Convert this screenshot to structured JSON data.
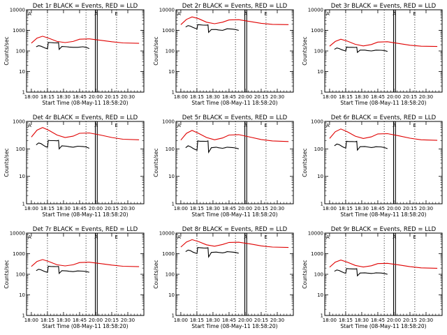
{
  "colors": {
    "events": "#000000",
    "lld": "#e00000",
    "axes": "#000000",
    "background": "#ffffff"
  },
  "x_tick_labels": [
    "18:00",
    "18:15",
    "18:30",
    "18:45",
    "20:00",
    "20:15",
    "20:30"
  ],
  "y_label": "Counts/sec",
  "x_label": "Start Time (08-May-11 18:58:20)",
  "markers": {
    "attenuator": "A",
    "eclipse": "E"
  },
  "chart_data": [
    {
      "type": "line",
      "title": "Det 1r BLACK = Events, RED = LLD",
      "xlabel": "Start Time (08-May-11 18:58:20)",
      "ylabel": "Counts/sec",
      "ylim": [
        1,
        10000
      ],
      "y_scale": "log",
      "y_tick_labels": [
        "10000",
        "1000",
        "100",
        "10",
        "1"
      ],
      "series": [
        {
          "name": "BLACK = Events",
          "color": "#000000",
          "x": [
            0.3,
            0.45,
            0.6,
            0.75,
            0.9,
            1.01,
            1.05,
            1.2,
            1.4,
            1.6,
            1.69,
            1.73,
            1.9,
            2.2,
            2.35,
            2.6,
            2.75,
            2.88,
            3.2,
            3.4,
            3.6
          ],
          "y": [
            160,
            180,
            170,
            150,
            135,
            130,
            260,
            255,
            250,
            248,
            255,
            120,
            165,
            160,
            155,
            150,
            150,
            150,
            160,
            150,
            130
          ]
        },
        {
          "name": "RED = LLD",
          "color": "#e00000",
          "x": [
            0,
            0.35,
            0.7,
            1.1,
            1.6,
            2.1,
            2.6,
            3.0,
            3.6,
            4.3,
            5.0,
            5.7,
            6.7
          ],
          "y": [
            240,
            420,
            520,
            410,
            290,
            255,
            290,
            370,
            385,
            330,
            280,
            245,
            235
          ]
        }
      ]
    },
    {
      "type": "line",
      "title": "Det 2r BLACK = Events, RED = LLD",
      "xlabel": "Start Time (08-May-11 18:58:20)",
      "ylabel": "Counts/sec",
      "ylim": [
        1,
        10000
      ],
      "y_scale": "log",
      "y_tick_labels": [
        "10000",
        "1000",
        "100",
        "10",
        "1"
      ],
      "series": [
        {
          "name": "BLACK = Events",
          "color": "#000000",
          "x": [
            0.3,
            0.45,
            0.6,
            0.75,
            0.9,
            1.01,
            1.05,
            1.2,
            1.4,
            1.6,
            1.69,
            1.73,
            1.9,
            2.2,
            2.35,
            2.6,
            2.75,
            2.88,
            3.2,
            3.4,
            3.6
          ],
          "y": [
            1450,
            1700,
            1600,
            1400,
            1250,
            1180,
            1900,
            1850,
            1800,
            1780,
            1850,
            800,
            1100,
            1100,
            1050,
            1000,
            1100,
            1200,
            1150,
            1100,
            1000
          ]
        },
        {
          "name": "RED = LLD",
          "color": "#e00000",
          "x": [
            0,
            0.35,
            0.7,
            1.1,
            1.6,
            2.1,
            2.6,
            3.0,
            3.6,
            4.3,
            5.0,
            5.7,
            6.7
          ],
          "y": [
            1900,
            3400,
            4500,
            3700,
            2500,
            2100,
            2500,
            3200,
            3300,
            2700,
            2200,
            1950,
            1900
          ]
        }
      ]
    },
    {
      "type": "line",
      "title": "Det 3r BLACK = Events, RED = LLD",
      "xlabel": "Start Time (08-May-11 18:58:20)",
      "ylabel": "Counts/sec",
      "ylim": [
        1,
        10000
      ],
      "y_scale": "log",
      "y_tick_labels": [
        "10000",
        "1000",
        "100",
        "10",
        "1"
      ],
      "series": [
        {
          "name": "BLACK = Events",
          "color": "#000000",
          "x": [
            0.3,
            0.45,
            0.6,
            0.75,
            0.9,
            1.01,
            1.05,
            1.2,
            1.4,
            1.6,
            1.69,
            1.73,
            1.9,
            2.2,
            2.35,
            2.6,
            2.75,
            2.88,
            3.2,
            3.4,
            3.6
          ],
          "y": [
            120,
            140,
            130,
            115,
            105,
            100,
            155,
            150,
            150,
            148,
            152,
            85,
            110,
            110,
            105,
            100,
            105,
            110,
            108,
            105,
            95
          ]
        },
        {
          "name": "RED = LLD",
          "color": "#e00000",
          "x": [
            0,
            0.35,
            0.7,
            1.1,
            1.6,
            2.1,
            2.6,
            3.0,
            3.6,
            4.3,
            5.0,
            5.7,
            6.7
          ],
          "y": [
            170,
            290,
            370,
            300,
            210,
            175,
            205,
            270,
            280,
            230,
            190,
            170,
            165
          ]
        }
      ]
    },
    {
      "type": "line",
      "title": "Det 4r BLACK = Events, RED = LLD",
      "xlabel": "Start Time (08-May-11 18:58:20)",
      "ylabel": "Counts/sec",
      "ylim": [
        1,
        1000
      ],
      "y_scale": "log",
      "y_tick_labels": [
        "1000",
        "100",
        "10",
        "1"
      ],
      "series": [
        {
          "name": "BLACK = Events",
          "color": "#000000",
          "x": [
            0.3,
            0.45,
            0.6,
            0.75,
            0.9,
            1.01,
            1.05,
            1.2,
            1.4,
            1.6,
            1.69,
            1.73,
            1.9,
            2.2,
            2.35,
            2.6,
            2.75,
            2.88,
            3.2,
            3.4,
            3.6
          ],
          "y": [
            140,
            165,
            155,
            135,
            120,
            115,
            205,
            200,
            200,
            198,
            205,
            100,
            130,
            125,
            120,
            115,
            120,
            125,
            122,
            118,
            105
          ]
        },
        {
          "name": "RED = LLD",
          "color": "#e00000",
          "x": [
            0,
            0.35,
            0.7,
            1.1,
            1.6,
            2.1,
            2.6,
            3.0,
            3.6,
            4.3,
            5.0,
            5.7,
            6.7
          ],
          "y": [
            270,
            480,
            600,
            470,
            320,
            260,
            290,
            370,
            380,
            320,
            260,
            225,
            215
          ]
        }
      ]
    },
    {
      "type": "line",
      "title": "Det 5r BLACK = Events, RED = LLD",
      "xlabel": "Start Time (08-May-11 18:58:20)",
      "ylabel": "Counts/sec",
      "ylim": [
        1,
        1000
      ],
      "y_scale": "log",
      "y_tick_labels": [
        "1000",
        "100",
        "10",
        "1"
      ],
      "series": [
        {
          "name": "BLACK = Events",
          "color": "#000000",
          "x": [
            0.3,
            0.45,
            0.6,
            0.75,
            0.9,
            1.01,
            1.05,
            1.2,
            1.4,
            1.6,
            1.69,
            1.73,
            1.9,
            2.2,
            2.35,
            2.6,
            2.75,
            2.88,
            3.2,
            3.4,
            3.6
          ],
          "y": [
            110,
            130,
            120,
            105,
            95,
            90,
            195,
            190,
            190,
            188,
            195,
            75,
            110,
            115,
            110,
            105,
            110,
            115,
            112,
            108,
            100
          ]
        },
        {
          "name": "RED = LLD",
          "color": "#e00000",
          "x": [
            0,
            0.35,
            0.7,
            1.1,
            1.6,
            2.1,
            2.6,
            3.0,
            3.6,
            4.3,
            5.0,
            5.7,
            6.7
          ],
          "y": [
            210,
            370,
            470,
            370,
            260,
            215,
            250,
            320,
            330,
            270,
            220,
            195,
            185
          ]
        }
      ]
    },
    {
      "type": "line",
      "title": "Det 6r BLACK = Events, RED = LLD",
      "xlabel": "Start Time (08-May-11 18:58:20)",
      "ylabel": "Counts/sec",
      "ylim": [
        1,
        1000
      ],
      "y_scale": "log",
      "y_tick_labels": [
        "1000",
        "100",
        "10",
        "1"
      ],
      "series": [
        {
          "name": "BLACK = Events",
          "color": "#000000",
          "x": [
            0.3,
            0.45,
            0.6,
            0.75,
            0.9,
            1.01,
            1.05,
            1.2,
            1.4,
            1.6,
            1.69,
            1.73,
            1.9,
            2.2,
            2.35,
            2.6,
            2.75,
            2.88,
            3.2,
            3.4,
            3.6
          ],
          "y": [
            130,
            150,
            142,
            125,
            112,
            108,
            190,
            185,
            185,
            183,
            190,
            90,
            120,
            122,
            118,
            112,
            115,
            120,
            118,
            112,
            102
          ]
        },
        {
          "name": "RED = LLD",
          "color": "#e00000",
          "x": [
            0,
            0.35,
            0.7,
            1.1,
            1.6,
            2.1,
            2.6,
            3.0,
            3.6,
            4.3,
            5.0,
            5.7,
            6.7
          ],
          "y": [
            240,
            420,
            530,
            420,
            290,
            240,
            275,
            350,
            360,
            300,
            245,
            215,
            205
          ]
        }
      ]
    },
    {
      "type": "line",
      "title": "Det 7r BLACK = Events, RED = LLD",
      "xlabel": "Start Time (08-May-11 18:58:20)",
      "ylabel": "Counts/sec",
      "ylim": [
        1,
        10000
      ],
      "y_scale": "log",
      "y_tick_labels": [
        "10000",
        "1000",
        "100",
        "10",
        "1"
      ],
      "series": [
        {
          "name": "BLACK = Events",
          "color": "#000000",
          "x": [
            0.3,
            0.45,
            0.6,
            0.75,
            0.9,
            1.01,
            1.05,
            1.2,
            1.4,
            1.6,
            1.69,
            1.73,
            1.9,
            2.2,
            2.35,
            2.6,
            2.75,
            2.88,
            3.2,
            3.4,
            3.6
          ],
          "y": [
            150,
            175,
            165,
            145,
            130,
            125,
            245,
            240,
            238,
            236,
            242,
            110,
            150,
            145,
            140,
            135,
            140,
            145,
            142,
            136,
            125
          ]
        },
        {
          "name": "RED = LLD",
          "color": "#e00000",
          "x": [
            0,
            0.35,
            0.7,
            1.1,
            1.6,
            2.1,
            2.6,
            3.0,
            3.6,
            4.3,
            5.0,
            5.7,
            6.7
          ],
          "y": [
            240,
            420,
            520,
            410,
            290,
            255,
            290,
            370,
            385,
            330,
            280,
            245,
            235
          ]
        }
      ]
    },
    {
      "type": "line",
      "title": "Det 8r BLACK = Events, RED = LLD",
      "xlabel": "Start Time (08-May-11 18:58:20)",
      "ylabel": "Counts/sec",
      "ylim": [
        1,
        10000
      ],
      "y_scale": "log",
      "y_tick_labels": [
        "10000",
        "1000",
        "100",
        "10",
        "1"
      ],
      "series": [
        {
          "name": "BLACK = Events",
          "color": "#000000",
          "x": [
            0.3,
            0.45,
            0.6,
            0.75,
            0.9,
            1.01,
            1.05,
            1.2,
            1.4,
            1.6,
            1.69,
            1.73,
            1.9,
            2.2,
            2.35,
            2.6,
            2.75,
            2.88,
            3.2,
            3.4,
            3.6
          ],
          "y": [
            1250,
            1500,
            1400,
            1200,
            1080,
            1020,
            2000,
            1950,
            1900,
            1880,
            1950,
            700,
            1150,
            1200,
            1150,
            1100,
            1150,
            1250,
            1200,
            1150,
            1050
          ]
        },
        {
          "name": "RED = LLD",
          "color": "#e00000",
          "x": [
            0,
            0.35,
            0.7,
            1.1,
            1.6,
            2.1,
            2.6,
            3.0,
            3.6,
            4.3,
            5.0,
            5.7,
            6.7
          ],
          "y": [
            2100,
            3700,
            4800,
            3900,
            2700,
            2300,
            2800,
            3500,
            3600,
            3000,
            2400,
            2100,
            2000
          ]
        }
      ]
    },
    {
      "type": "line",
      "title": "Det 9r BLACK = Events, RED = LLD",
      "xlabel": "Start Time (08-May-11 18:58:20)",
      "ylabel": "Counts/sec",
      "ylim": [
        1,
        10000
      ],
      "y_scale": "log",
      "y_tick_labels": [
        "10000",
        "1000",
        "100",
        "10",
        "1"
      ],
      "series": [
        {
          "name": "BLACK = Events",
          "color": "#000000",
          "x": [
            0.3,
            0.45,
            0.6,
            0.75,
            0.9,
            1.01,
            1.05,
            1.2,
            1.4,
            1.6,
            1.69,
            1.73,
            1.9,
            2.2,
            2.35,
            2.6,
            2.75,
            2.88,
            3.2,
            3.4,
            3.6
          ],
          "y": [
            140,
            162,
            152,
            132,
            118,
            112,
            190,
            185,
            183,
            181,
            186,
            85,
            115,
            118,
            114,
            110,
            112,
            118,
            115,
            110,
            100
          ]
        },
        {
          "name": "RED = LLD",
          "color": "#e00000",
          "x": [
            0,
            0.35,
            0.7,
            1.1,
            1.6,
            2.1,
            2.6,
            3.0,
            3.6,
            4.3,
            5.0,
            5.7,
            6.7
          ],
          "y": [
            220,
            390,
            490,
            390,
            270,
            225,
            260,
            330,
            340,
            285,
            235,
            205,
            195
          ]
        }
      ]
    }
  ]
}
